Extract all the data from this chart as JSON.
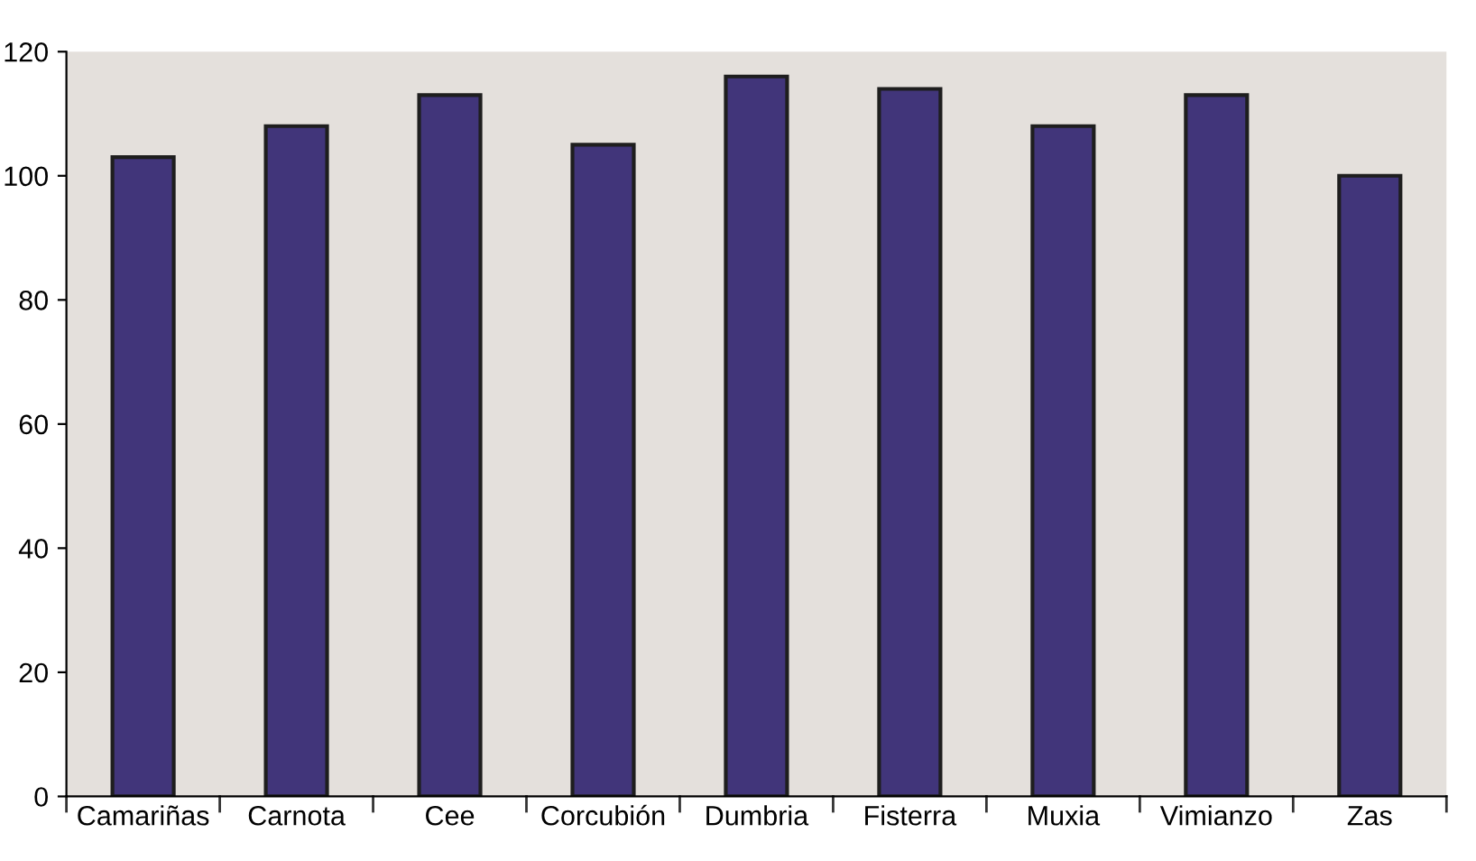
{
  "chart_data": {
    "type": "bar",
    "categories": [
      "Camariñas",
      "Carnota",
      "Cee",
      "Corcubión",
      "Dumbria",
      "Fisterra",
      "Muxia",
      "Vimianzo",
      "Zas"
    ],
    "values": [
      103,
      108,
      113,
      105,
      116,
      114,
      108,
      113,
      100
    ],
    "color": "#41357a",
    "ylim": [
      0,
      120
    ],
    "yticks": [
      0,
      20,
      40,
      60,
      80,
      100,
      120
    ],
    "grid": false
  }
}
